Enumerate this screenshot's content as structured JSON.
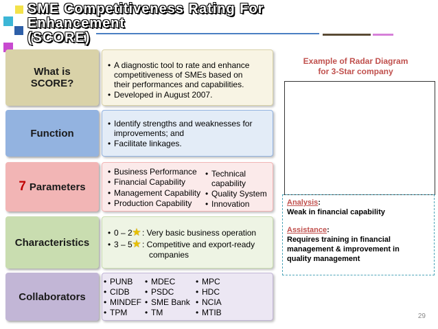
{
  "colors": {
    "title_text": "#ffffff",
    "accent_red": "#c0504d",
    "star": "#e8c000"
  },
  "title": {
    "line1": "SME Competitiveness Rating For",
    "line2": "Enhancement",
    "line3": "(SCORE)"
  },
  "rows": {
    "what": {
      "label": "What is SCORE?",
      "bullets": [
        "A diagnostic tool to rate and enhance",
        "competitiveness of SMEs based on",
        "their performances and capabilities.",
        "Developed in August 2007."
      ]
    },
    "function": {
      "label": "Function",
      "bullets": [
        "Identify strengths and weaknesses for",
        "improvements; and",
        "Facilitate linkages."
      ]
    },
    "parameters": {
      "label_number": "7",
      "label_text": "Parameters",
      "col1": [
        "Business Performance",
        "Financial Capability",
        "Management Capability",
        "Production Capability"
      ],
      "col2": [
        "Technical",
        "capability",
        "Quality System",
        "Innovation"
      ]
    },
    "characteristics": {
      "label": "Characteristics",
      "items": [
        {
          "range": "0 – 2",
          "desc": ": Very basic business operation"
        },
        {
          "range": "3 – 5",
          "desc": ": Competitive and export-ready"
        }
      ],
      "desc_cont": "companies"
    },
    "collaborators": {
      "label": "Collaborators",
      "col1": [
        "PUNB",
        "CIDB",
        "MINDEF",
        "TPM"
      ],
      "col2": [
        "MDEC",
        "PSDC",
        "SME Bank",
        "TM"
      ],
      "col3": [
        "MPC",
        "HDC",
        "NCIA",
        "MTIB"
      ]
    }
  },
  "example": {
    "title_line1": "Example of Radar Diagram",
    "title_line2": "for 3-Star company"
  },
  "analysis": {
    "analysis_label": "Analysis",
    "analysis_text": "Weak in financial capability",
    "assistance_label": "Assistance",
    "assistance_lines": [
      "Requires training in financial",
      "management & improvement in",
      "quality management"
    ]
  },
  "page_number": "29",
  "bullet_char": "•",
  "star_char": "★",
  "colon": ":"
}
